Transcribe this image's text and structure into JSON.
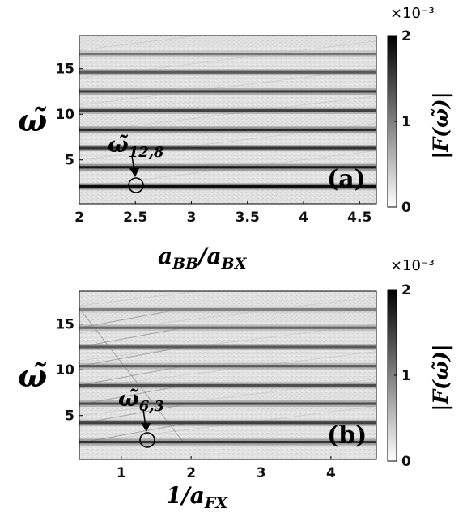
{
  "chart_data": [
    {
      "type": "heatmap",
      "panel_label": "(a)",
      "xlabel": "a_BB/a_BX",
      "ylabel": "ω̃",
      "xlim": [
        2.0,
        4.65
      ],
      "ylim": [
        0.2,
        18.6
      ],
      "x_ticks": [
        "2",
        "2.5",
        "3",
        "3.5",
        "4",
        "4.5"
      ],
      "x_tick_values": [
        2,
        2.5,
        3,
        3.5,
        4,
        4.5
      ],
      "y_ticks": [
        "5",
        "10",
        "15"
      ],
      "y_tick_values": [
        5,
        10,
        15
      ],
      "colorbar": {
        "label": "|F(ω̃)|",
        "min": 0,
        "max": 0.002,
        "ticks": [
          "0",
          "1",
          "2"
        ],
        "multiplier": "×10⁻³"
      },
      "bands": [
        2.1,
        4.2,
        6.3,
        8.3,
        10.4,
        12.5,
        14.6,
        16.6
      ],
      "band_intensity": [
        0.95,
        0.9,
        0.8,
        0.85,
        0.75,
        0.75,
        0.65,
        0.55
      ],
      "annotation": {
        "text": "ω̃12,8",
        "main": "ω̃",
        "sub": "12,8",
        "x": 2.53,
        "y": 2.1
      }
    },
    {
      "type": "heatmap",
      "panel_label": "(b)",
      "xlabel": "1/a_FX",
      "ylabel": "ω̃",
      "xlim": [
        0.4,
        4.65
      ],
      "ylim": [
        0.2,
        18.6
      ],
      "x_ticks": [
        "1",
        "2",
        "3",
        "4"
      ],
      "x_tick_values": [
        1,
        2,
        3,
        4
      ],
      "y_ticks": [
        "5",
        "10",
        "15"
      ],
      "y_tick_values": [
        5,
        10,
        15
      ],
      "colorbar": {
        "label": "|F(ω̃)|",
        "min": 0,
        "max": 0.002,
        "ticks": [
          "0",
          "1",
          "2"
        ],
        "multiplier": "×10⁻³"
      },
      "bands": [
        2.1,
        4.2,
        6.3,
        8.3,
        10.4,
        12.5,
        14.6,
        16.6
      ],
      "band_intensity": [
        0.8,
        0.75,
        0.7,
        0.7,
        0.65,
        0.65,
        0.6,
        0.5
      ],
      "annotation": {
        "text": "ω̃6,3",
        "main": "ω̃",
        "sub": "6,3",
        "x": 1.33,
        "y": 2.1
      }
    }
  ]
}
